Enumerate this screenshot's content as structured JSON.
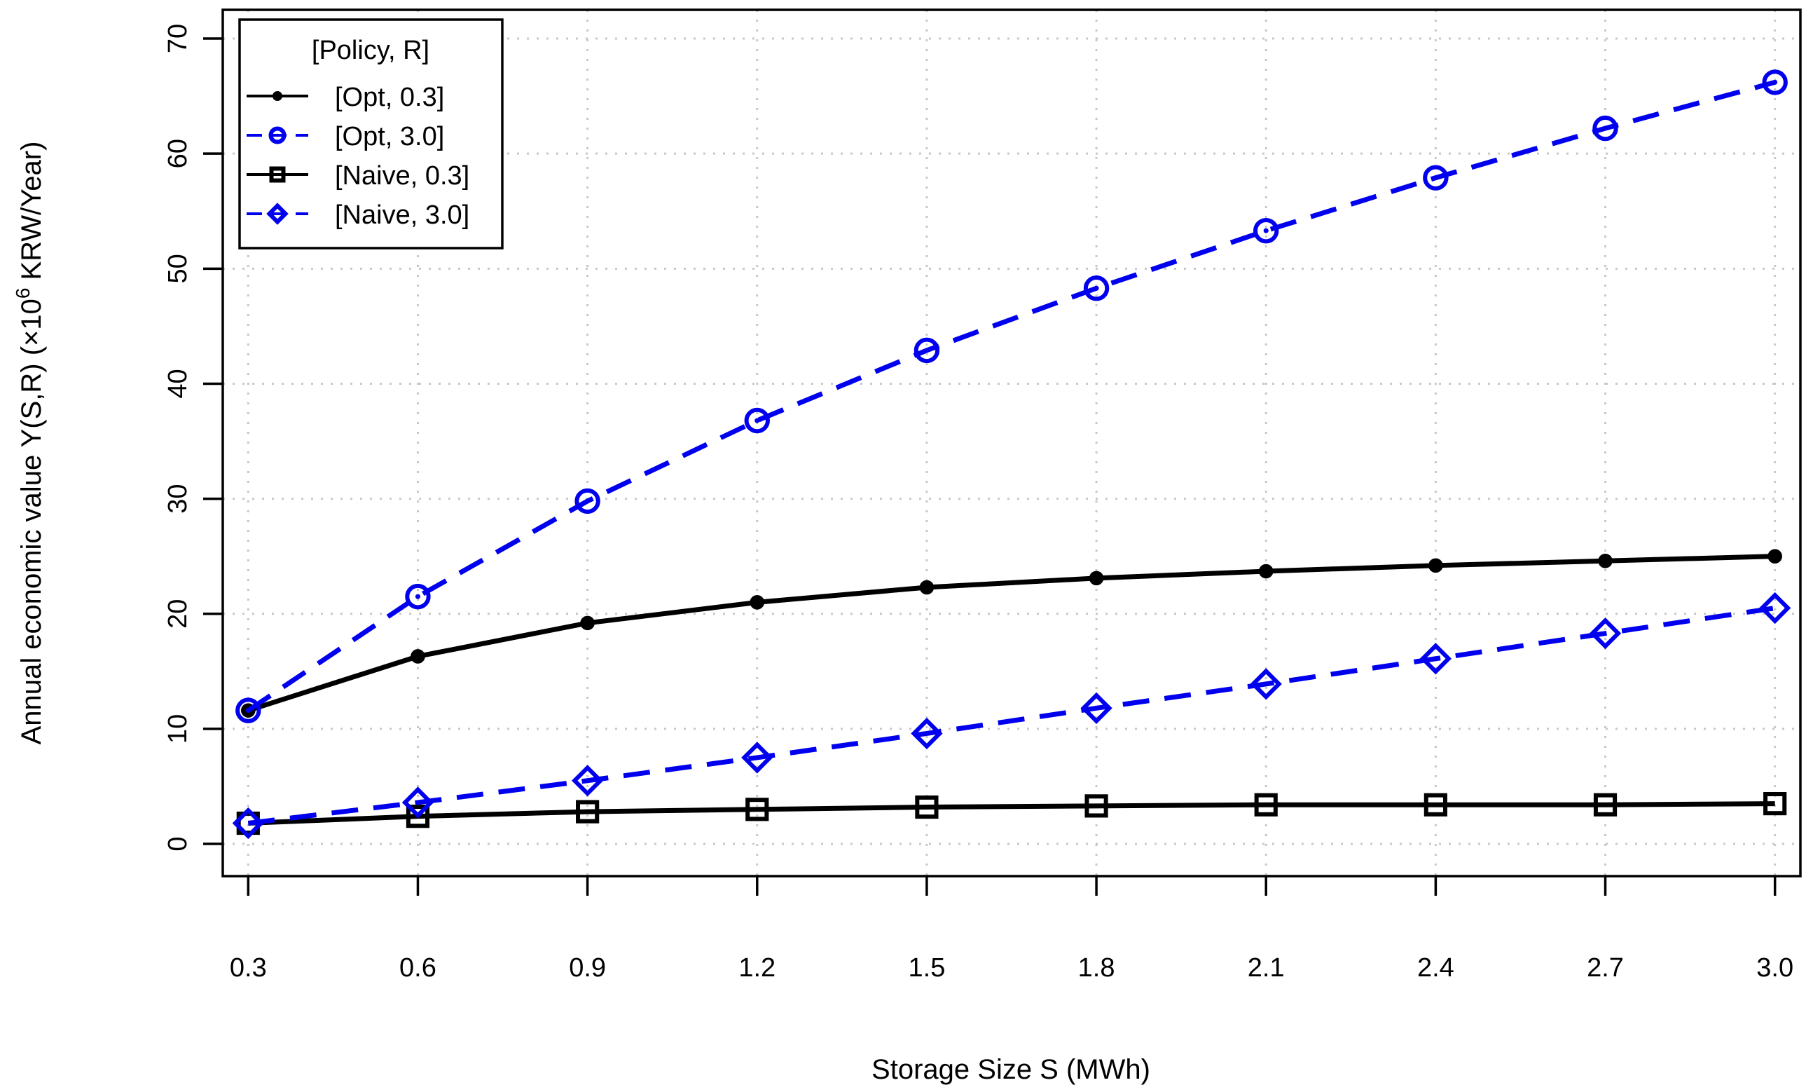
{
  "chart_data": {
    "type": "line",
    "title": "",
    "xlabel": "Storage Size S (MWh)",
    "ylabel": {
      "prefix": "Annual economic value Y(S,R) (×10",
      "superscript": "6",
      "suffix": " KRW/Year)"
    },
    "x": [
      0.3,
      0.6,
      0.9,
      1.2,
      1.5,
      1.8,
      2.1,
      2.4,
      2.7,
      3.0
    ],
    "x_tick_labels": [
      "0.3",
      "0.6",
      "0.9",
      "1.2",
      "1.5",
      "1.8",
      "2.1",
      "2.4",
      "2.7",
      "3.0"
    ],
    "y_ticks": [
      0,
      10,
      20,
      30,
      40,
      50,
      60,
      70
    ],
    "y_tick_labels": [
      "0",
      "10",
      "20",
      "30",
      "40",
      "50",
      "60",
      "70"
    ],
    "xlim": [
      0.255,
      3.045
    ],
    "ylim": [
      -2.8,
      72.5
    ],
    "grid": true,
    "legend": {
      "title": "[Policy, R]",
      "position": "top-left"
    },
    "series": [
      {
        "name": "[Opt, 0.3]",
        "color": "#000000",
        "dash": "solid",
        "marker": "filled-circle",
        "values": [
          11.6,
          16.3,
          19.2,
          21.0,
          22.3,
          23.1,
          23.7,
          24.2,
          24.6,
          25.0
        ]
      },
      {
        "name": "[Opt, 3.0]",
        "color": "#0000ee",
        "dash": "dashed",
        "marker": "open-circle",
        "values": [
          11.6,
          21.5,
          29.8,
          36.8,
          42.9,
          48.3,
          53.3,
          57.9,
          62.2,
          66.2
        ]
      },
      {
        "name": "[Naive, 0.3]",
        "color": "#000000",
        "dash": "solid",
        "marker": "open-square",
        "values": [
          1.8,
          2.4,
          2.8,
          3.0,
          3.2,
          3.3,
          3.4,
          3.4,
          3.4,
          3.5
        ]
      },
      {
        "name": "[Naive, 3.0]",
        "color": "#0000ee",
        "dash": "dashed",
        "marker": "open-diamond",
        "values": [
          1.8,
          3.6,
          5.5,
          7.5,
          9.6,
          11.8,
          13.9,
          16.1,
          18.3,
          20.5
        ]
      }
    ]
  }
}
